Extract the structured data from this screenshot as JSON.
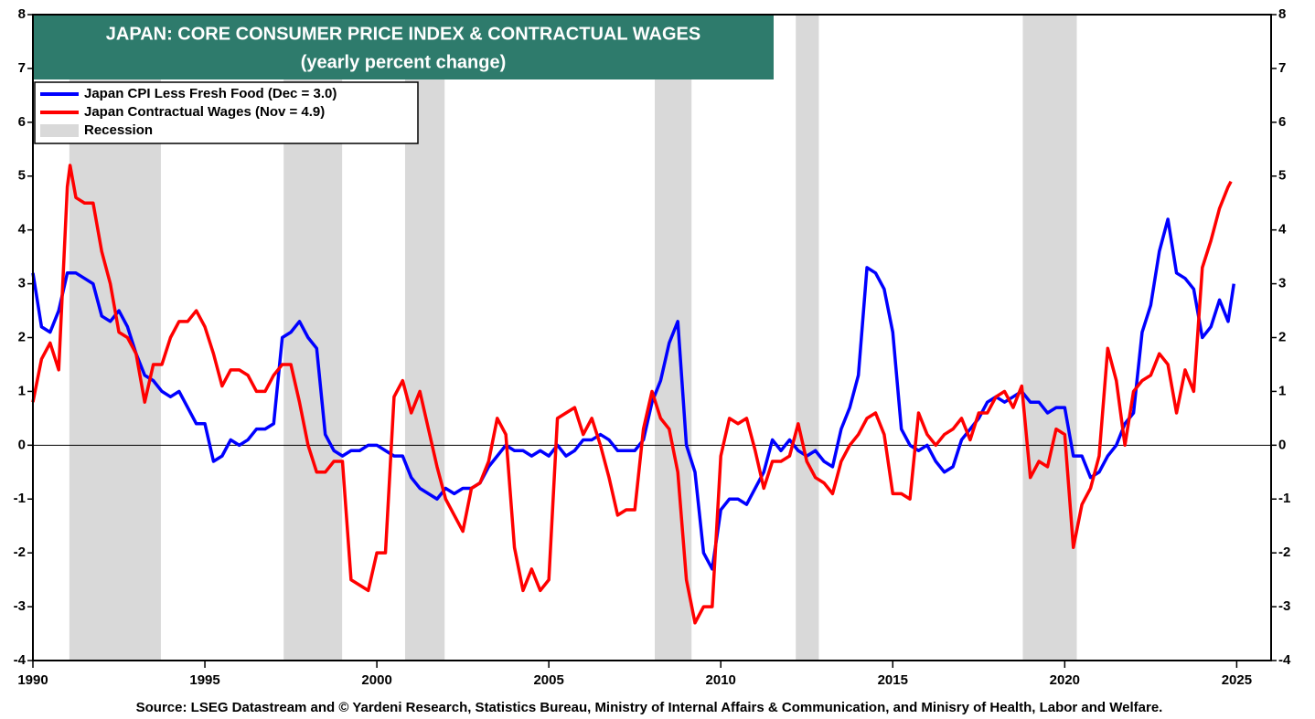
{
  "chart_data": {
    "type": "line",
    "title": "JAPAN: CORE CONSUMER PRICE INDEX & CONTRACTUAL WAGES",
    "subtitle": "(yearly percent change)",
    "source": "Source: LSEG Datastream and © Yardeni Research, Statistics Bureau, Ministry of Internal Affairs & Communication, and Minisry of Health, Labor and Welfare.",
    "xlim": [
      1990,
      2026
    ],
    "xticks": [
      1990,
      1995,
      2000,
      2005,
      2010,
      2015,
      2020,
      2025
    ],
    "ylim": [
      -4,
      8
    ],
    "yticks": [
      -4,
      -3,
      -2,
      -1,
      0,
      1,
      2,
      3,
      4,
      5,
      6,
      7,
      8
    ],
    "y2lim": [
      -4,
      8
    ],
    "y2ticks": [
      -4,
      -3,
      -2,
      -1,
      0,
      1,
      2,
      3,
      4,
      5,
      6,
      7,
      8
    ],
    "recession_label": "Recession",
    "recession_color": "#d9d9d9",
    "recessions": [
      [
        1991.06,
        1993.72
      ],
      [
        1997.29,
        1998.99
      ],
      [
        2000.82,
        2001.97
      ],
      [
        2008.08,
        2009.15
      ],
      [
        2012.18,
        2012.85
      ],
      [
        2018.78,
        2020.35
      ]
    ],
    "series": [
      {
        "name": "Japan CPI Less Fresh Food (Dec = 3.0)",
        "color": "#0000ff",
        "x": [
          1990,
          1990.25,
          1990.5,
          1990.75,
          1991,
          1991.25,
          1991.5,
          1991.75,
          1992,
          1992.25,
          1992.5,
          1992.75,
          1993,
          1993.25,
          1993.5,
          1993.75,
          1994,
          1994.25,
          1994.5,
          1994.75,
          1995,
          1995.25,
          1995.5,
          1995.75,
          1996,
          1996.25,
          1996.5,
          1996.75,
          1997,
          1997.25,
          1997.5,
          1997.75,
          1998,
          1998.25,
          1998.5,
          1998.75,
          1999,
          1999.25,
          1999.5,
          1999.75,
          2000,
          2000.25,
          2000.5,
          2000.75,
          2001,
          2001.25,
          2001.5,
          2001.75,
          2002,
          2002.25,
          2002.5,
          2002.75,
          2003,
          2003.25,
          2003.5,
          2003.75,
          2004,
          2004.25,
          2004.5,
          2004.75,
          2005,
          2005.25,
          2005.5,
          2005.75,
          2006,
          2006.25,
          2006.5,
          2006.75,
          2007,
          2007.25,
          2007.5,
          2007.75,
          2008,
          2008.25,
          2008.5,
          2008.75,
          2009,
          2009.25,
          2009.5,
          2009.75,
          2010,
          2010.25,
          2010.5,
          2010.75,
          2011,
          2011.25,
          2011.5,
          2011.75,
          2012,
          2012.25,
          2012.5,
          2012.75,
          2013,
          2013.25,
          2013.5,
          2013.75,
          2014,
          2014.25,
          2014.5,
          2014.75,
          2015,
          2015.25,
          2015.5,
          2015.75,
          2016,
          2016.25,
          2016.5,
          2016.75,
          2017,
          2017.25,
          2017.5,
          2017.75,
          2018,
          2018.25,
          2018.5,
          2018.75,
          2019,
          2019.25,
          2019.5,
          2019.75,
          2020,
          2020.25,
          2020.5,
          2020.75,
          2021,
          2021.25,
          2021.5,
          2021.75,
          2022,
          2022.25,
          2022.5,
          2022.75,
          2023,
          2023.25,
          2023.5,
          2023.75,
          2024,
          2024.25,
          2024.5,
          2024.75,
          2024.917
        ],
        "values": [
          3.2,
          2.2,
          2.1,
          2.5,
          3.2,
          3.2,
          3.1,
          3.0,
          2.4,
          2.3,
          2.5,
          2.2,
          1.7,
          1.3,
          1.2,
          1.0,
          0.9,
          1.0,
          0.7,
          0.4,
          0.4,
          -0.3,
          -0.2,
          0.1,
          0.0,
          0.1,
          0.3,
          0.3,
          0.4,
          2.0,
          2.1,
          2.3,
          2.0,
          1.8,
          0.2,
          -0.1,
          -0.2,
          -0.1,
          -0.1,
          0.0,
          0.0,
          -0.1,
          -0.2,
          -0.2,
          -0.6,
          -0.8,
          -0.9,
          -1.0,
          -0.8,
          -0.9,
          -0.8,
          -0.8,
          -0.7,
          -0.4,
          -0.2,
          0.0,
          -0.1,
          -0.1,
          -0.2,
          -0.1,
          -0.2,
          0.0,
          -0.2,
          -0.1,
          0.1,
          0.1,
          0.2,
          0.1,
          -0.1,
          -0.1,
          -0.1,
          0.1,
          0.8,
          1.2,
          1.9,
          2.3,
          0.0,
          -0.5,
          -2.0,
          -2.3,
          -1.2,
          -1.0,
          -1.0,
          -1.1,
          -0.8,
          -0.5,
          0.1,
          -0.1,
          0.1,
          -0.1,
          -0.2,
          -0.1,
          -0.3,
          -0.4,
          0.3,
          0.7,
          1.3,
          3.3,
          3.2,
          2.9,
          2.1,
          0.3,
          0.0,
          -0.1,
          0.0,
          -0.3,
          -0.5,
          -0.4,
          0.1,
          0.3,
          0.5,
          0.8,
          0.9,
          0.8,
          0.9,
          1.0,
          0.8,
          0.8,
          0.6,
          0.7,
          0.7,
          -0.2,
          -0.2,
          -0.6,
          -0.5,
          -0.2,
          0.0,
          0.4,
          0.6,
          2.1,
          2.6,
          3.6,
          4.2,
          3.2,
          3.1,
          2.9,
          2.0,
          2.2,
          2.7,
          2.3,
          3.0
        ]
      },
      {
        "name": "Japan Contractual Wages (Nov = 4.9)",
        "color": "#ff0000",
        "x": [
          1990,
          1990.25,
          1990.5,
          1990.75,
          1991,
          1991.08,
          1991.25,
          1991.5,
          1991.75,
          1992,
          1992.25,
          1992.5,
          1992.75,
          1993,
          1993.25,
          1993.5,
          1993.75,
          1994,
          1994.25,
          1994.5,
          1994.75,
          1995,
          1995.25,
          1995.5,
          1995.75,
          1996,
          1996.25,
          1996.5,
          1996.75,
          1997,
          1997.25,
          1997.5,
          1997.75,
          1998,
          1998.25,
          1998.5,
          1998.75,
          1999,
          1999.25,
          1999.5,
          1999.75,
          2000,
          2000.25,
          2000.5,
          2000.75,
          2001,
          2001.25,
          2001.5,
          2001.75,
          2002,
          2002.25,
          2002.5,
          2002.75,
          2003,
          2003.25,
          2003.5,
          2003.75,
          2004,
          2004.25,
          2004.5,
          2004.75,
          2005,
          2005.25,
          2005.5,
          2005.75,
          2006,
          2006.25,
          2006.5,
          2006.75,
          2007,
          2007.25,
          2007.5,
          2007.75,
          2008,
          2008.25,
          2008.5,
          2008.75,
          2009,
          2009.25,
          2009.5,
          2009.75,
          2010,
          2010.25,
          2010.5,
          2010.75,
          2011,
          2011.25,
          2011.5,
          2011.75,
          2012,
          2012.25,
          2012.5,
          2012.75,
          2013,
          2013.25,
          2013.5,
          2013.75,
          2014,
          2014.25,
          2014.5,
          2014.75,
          2015,
          2015.25,
          2015.5,
          2015.75,
          2016,
          2016.25,
          2016.5,
          2016.75,
          2017,
          2017.25,
          2017.5,
          2017.75,
          2018,
          2018.25,
          2018.5,
          2018.75,
          2019,
          2019.25,
          2019.5,
          2019.75,
          2020,
          2020.25,
          2020.5,
          2020.75,
          2021,
          2021.25,
          2021.5,
          2021.75,
          2022,
          2022.25,
          2022.5,
          2022.75,
          2023,
          2023.25,
          2023.5,
          2023.75,
          2024,
          2024.25,
          2024.5,
          2024.75,
          2024.833
        ],
        "values": [
          0.8,
          1.6,
          1.9,
          1.4,
          4.8,
          5.2,
          4.6,
          4.5,
          4.5,
          3.6,
          3.0,
          2.1,
          2.0,
          1.7,
          0.8,
          1.5,
          1.5,
          2.0,
          2.3,
          2.3,
          2.5,
          2.2,
          1.7,
          1.1,
          1.4,
          1.4,
          1.3,
          1.0,
          1.0,
          1.3,
          1.5,
          1.5,
          0.8,
          0.0,
          -0.5,
          -0.5,
          -0.3,
          -0.3,
          -2.5,
          -2.6,
          -2.7,
          -2.0,
          -2.0,
          0.9,
          1.2,
          0.6,
          1.0,
          0.3,
          -0.4,
          -1.0,
          -1.3,
          -1.6,
          -0.8,
          -0.7,
          -0.3,
          0.5,
          0.2,
          -1.9,
          -2.7,
          -2.3,
          -2.7,
          -2.5,
          0.5,
          0.6,
          0.7,
          0.2,
          0.5,
          0.0,
          -0.6,
          -1.3,
          -1.2,
          -1.2,
          0.3,
          1.0,
          0.5,
          0.3,
          -0.5,
          -2.5,
          -3.3,
          -3.0,
          -3.0,
          -0.2,
          0.5,
          0.4,
          0.5,
          -0.1,
          -0.8,
          -0.3,
          -0.3,
          -0.2,
          0.4,
          -0.3,
          -0.6,
          -0.7,
          -0.9,
          -0.3,
          0.0,
          0.2,
          0.5,
          0.6,
          0.2,
          -0.9,
          -0.9,
          -1.0,
          0.6,
          0.2,
          0.0,
          0.2,
          0.3,
          0.5,
          0.1,
          0.6,
          0.6,
          0.9,
          1.0,
          0.7,
          1.1,
          -0.6,
          -0.3,
          -0.4,
          0.3,
          0.2,
          -1.9,
          -1.1,
          -0.8,
          -0.2,
          1.8,
          1.2,
          0.0,
          1.0,
          1.2,
          1.3,
          1.7,
          1.5,
          0.6,
          1.4,
          1.0,
          3.3,
          3.8,
          4.4,
          4.8,
          4.9
        ]
      }
    ]
  }
}
